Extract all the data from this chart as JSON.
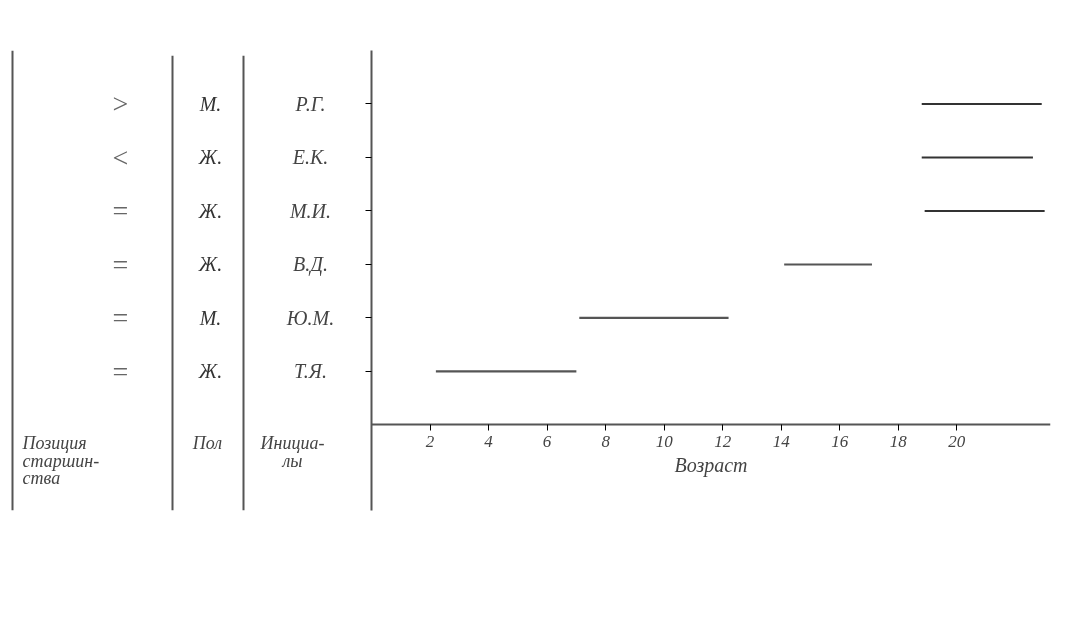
{
  "chart_data": {
    "type": "bar",
    "orientation": "horizontal",
    "categories": [
      "Р.Г.",
      "Е.К.",
      "М.И.",
      "В.Д.",
      "Ю.М.",
      "Т.Я."
    ],
    "series": [
      {
        "color": "#555555",
        "base": [
          null,
          null,
          null,
          14.1,
          7.1,
          2.2
        ],
        "values": [
          null,
          null,
          null,
          3.0,
          5.1,
          4.8
        ]
      },
      {
        "color": "#333333",
        "base": [
          18.8,
          18.8,
          18.9,
          null,
          null,
          null
        ],
        "values": [
          4.1,
          3.8,
          4.1,
          null,
          null,
          null
        ]
      }
    ],
    "xlabel": "Возраст",
    "xlim": [
      0,
      23.2
    ],
    "xticks": [
      2,
      4,
      6,
      8,
      10,
      12,
      14,
      16,
      18,
      20
    ],
    "tick_labels": "x",
    "grid": false,
    "annotations": [
      "Позиция\nстаршин-\nства",
      "Пол",
      "Инициа-\nлы",
      ">",
      "<",
      "=",
      "=",
      "=",
      "=",
      "М.",
      "Ж.",
      "Ж.",
      "Ж.",
      "М.",
      "Ж."
    ]
  }
}
